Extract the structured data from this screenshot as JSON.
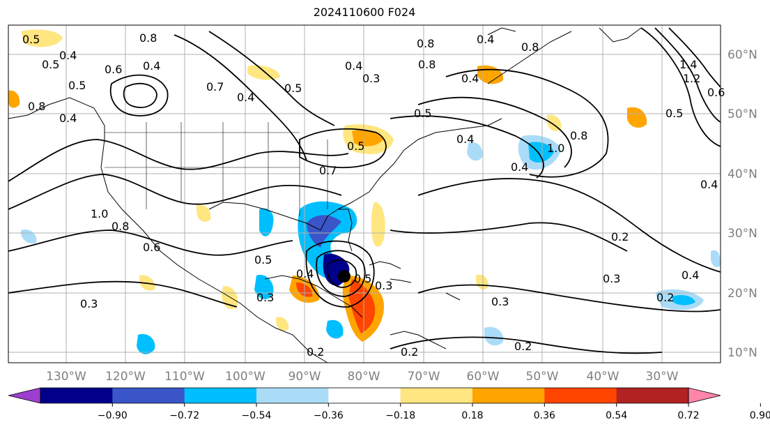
{
  "title": "2024110600 F024",
  "lon_labels": [
    "130°W",
    "120°W",
    "110°W",
    "100°W",
    "90°W",
    "80°W",
    "70°W",
    "60°W",
    "50°W",
    "40°W",
    "30°W"
  ],
  "lat_labels": [
    "60°N",
    "50°N",
    "40°N",
    "30°N",
    "20°N",
    "10°N"
  ],
  "colorbar": {
    "colors": [
      "#9c3ecf",
      "#00008b",
      "#3a55c8",
      "#00bfff",
      "#aadcf8",
      "#ffffff",
      "#ffe680",
      "#ffa500",
      "#ff4500",
      "#b22222",
      "#ff85aa"
    ],
    "labels": [
      "−0.90",
      "−0.72",
      "−0.54",
      "−0.36",
      "−0.18",
      "0.18",
      "0.36",
      "0.54",
      "0.72",
      "0.90"
    ]
  },
  "contour_labels": [
    "0.5",
    "0.4",
    "0.5",
    "0.6",
    "0.4",
    "0.8",
    "0.7",
    "0.4",
    "0.5",
    "0.3",
    "0.4",
    "0.8",
    "0.4",
    "0.5",
    "0.4",
    "0.8",
    "1.0",
    "0.4",
    "0.8",
    "0.7",
    "0.4",
    "0.5",
    "0.4",
    "0.8",
    "0.5",
    "0.5",
    "1.4",
    "1.2",
    "0.6",
    "0.5",
    "0.4",
    "0.5",
    "1.0",
    "0.8",
    "0.6",
    "0.3",
    "0.3",
    "0.2",
    "0.3",
    "0.2",
    "0.4",
    "0.2",
    "0.3",
    "0.2",
    "0.4",
    "0.8",
    "0.2",
    "0.3"
  ]
}
